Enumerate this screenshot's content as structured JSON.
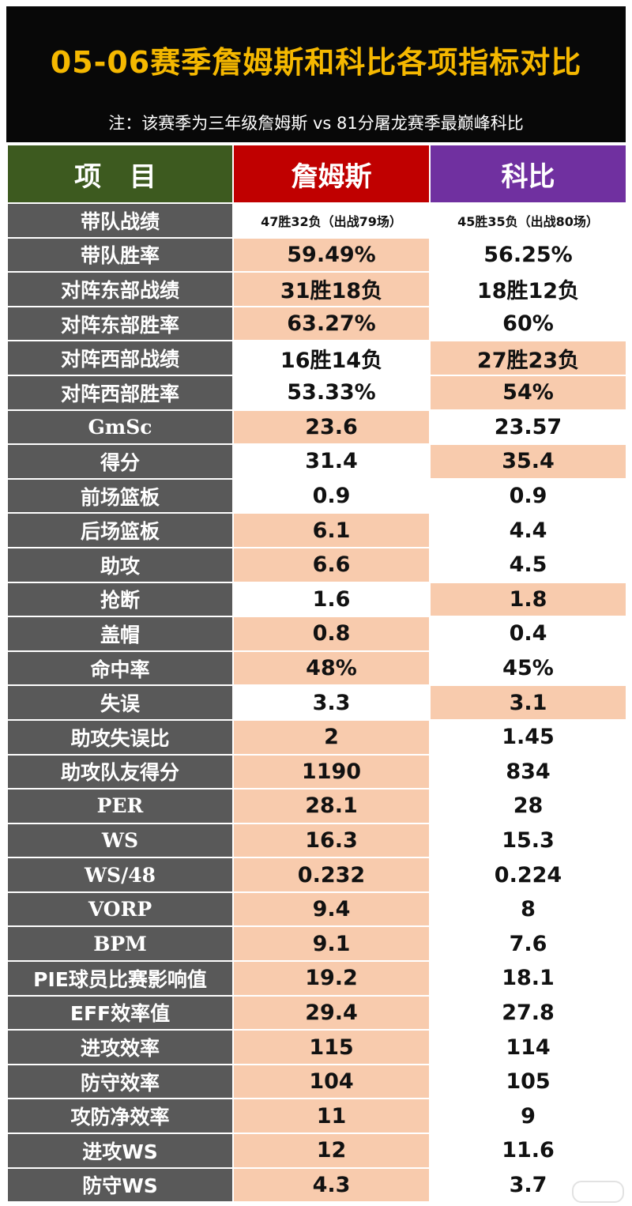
{
  "header": {
    "title": "05-06赛季詹姆斯和科比各项指标对比",
    "subtitle": "注：该赛季为三年级詹姆斯 vs 81分屠龙赛季最巅峰科比"
  },
  "columns": {
    "label": "项 目",
    "james": "詹姆斯",
    "kobe": "科比"
  },
  "colors": {
    "title": "#f5b800",
    "header_bg": "#080808",
    "label_header": "#3d5a1f",
    "james_header": "#c00000",
    "kobe_header": "#7030a0",
    "row_label_bg": "#595959",
    "highlight": "#f8cbad"
  },
  "rows": [
    {
      "label": "带队战绩",
      "james": "47胜32负（出战79场）",
      "kobe": "45胜35负（出战80场）",
      "hl": "none",
      "small": true
    },
    {
      "label": "带队胜率",
      "james": "59.49%",
      "kobe": "56.25%",
      "hl": "james"
    },
    {
      "label": "对阵东部战绩",
      "james": "31胜18负",
      "kobe": "18胜12负",
      "hl": "james"
    },
    {
      "label": "对阵东部胜率",
      "james": "63.27%",
      "kobe": "60%",
      "hl": "james"
    },
    {
      "label": "对阵西部战绩",
      "james": "16胜14负",
      "kobe": "27胜23负",
      "hl": "kobe"
    },
    {
      "label": "对阵西部胜率",
      "james": "53.33%",
      "kobe": "54%",
      "hl": "kobe"
    },
    {
      "label": "GmSc",
      "james": "23.6",
      "kobe": "23.57",
      "hl": "james",
      "latin": true
    },
    {
      "label": "得分",
      "james": "31.4",
      "kobe": "35.4",
      "hl": "kobe"
    },
    {
      "label": "前场篮板",
      "james": "0.9",
      "kobe": "0.9",
      "hl": "none"
    },
    {
      "label": "后场篮板",
      "james": "6.1",
      "kobe": "4.4",
      "hl": "james"
    },
    {
      "label": "助攻",
      "james": "6.6",
      "kobe": "4.5",
      "hl": "james"
    },
    {
      "label": "抢断",
      "james": "1.6",
      "kobe": "1.8",
      "hl": "kobe"
    },
    {
      "label": "盖帽",
      "james": "0.8",
      "kobe": "0.4",
      "hl": "james"
    },
    {
      "label": "命中率",
      "james": "48%",
      "kobe": "45%",
      "hl": "james"
    },
    {
      "label": "失误",
      "james": "3.3",
      "kobe": "3.1",
      "hl": "kobe"
    },
    {
      "label": "助攻失误比",
      "james": "2",
      "kobe": "1.45",
      "hl": "james"
    },
    {
      "label": "助攻队友得分",
      "james": "1190",
      "kobe": "834",
      "hl": "james"
    },
    {
      "label": "PER",
      "james": "28.1",
      "kobe": "28",
      "hl": "james",
      "latin": true
    },
    {
      "label": "WS",
      "james": "16.3",
      "kobe": "15.3",
      "hl": "james",
      "latin": true
    },
    {
      "label": "WS/48",
      "james": "0.232",
      "kobe": "0.224",
      "hl": "james",
      "latin": true
    },
    {
      "label": "VORP",
      "james": "9.4",
      "kobe": "8",
      "hl": "james",
      "latin": true
    },
    {
      "label": "BPM",
      "james": "9.1",
      "kobe": "7.6",
      "hl": "james",
      "latin": true
    },
    {
      "label": "PIE球员比赛影响值",
      "james": "19.2",
      "kobe": "18.1",
      "hl": "james"
    },
    {
      "label": "EFF效率值",
      "james": "29.4",
      "kobe": "27.8",
      "hl": "james"
    },
    {
      "label": "进攻效率",
      "james": "115",
      "kobe": "114",
      "hl": "james"
    },
    {
      "label": "防守效率",
      "james": "104",
      "kobe": "105",
      "hl": "james"
    },
    {
      "label": "攻防净效率",
      "james": "11",
      "kobe": "9",
      "hl": "james"
    },
    {
      "label": "进攻WS",
      "james": "12",
      "kobe": "11.6",
      "hl": "james"
    },
    {
      "label": "防守WS",
      "james": "4.3",
      "kobe": "3.7",
      "hl": "james"
    }
  ]
}
